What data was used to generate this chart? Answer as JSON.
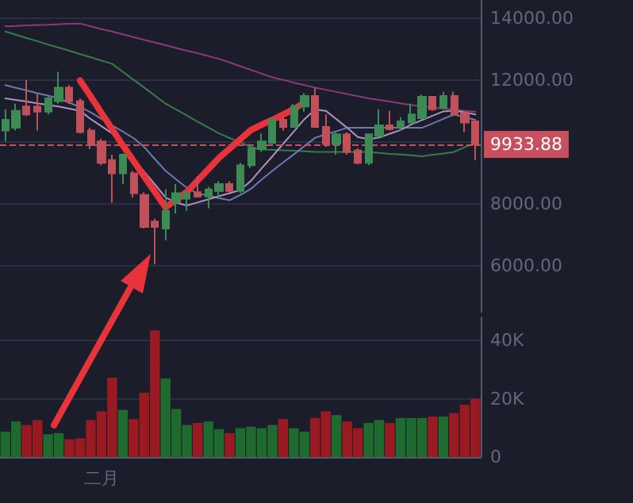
{
  "chart_data": [
    {
      "type": "candlestick",
      "categories": [
        null,
        null,
        null,
        null,
        null,
        null,
        null,
        null,
        null,
        null,
        null,
        null,
        null,
        null,
        null,
        null,
        null,
        null,
        null,
        null,
        null,
        null,
        null,
        null,
        null,
        null,
        null,
        null,
        null,
        null,
        null,
        null,
        null,
        null,
        null,
        null,
        null,
        null,
        null,
        null,
        null,
        null,
        null,
        null,
        null
      ],
      "ohlc": [
        [
          10380,
          11070,
          10030,
          10730
        ],
        [
          10470,
          11250,
          10380,
          11020
        ],
        [
          11160,
          12020,
          10850,
          10900
        ],
        [
          11160,
          11590,
          10380,
          10990
        ],
        [
          10990,
          11500,
          10900,
          11420
        ],
        [
          11330,
          12280,
          11250,
          11770
        ],
        [
          11770,
          11850,
          11250,
          11330
        ],
        [
          11330,
          11420,
          10290,
          10330
        ],
        [
          10380,
          10470,
          9780,
          9910
        ],
        [
          10030,
          10120,
          9260,
          9340
        ],
        [
          9430,
          9600,
          8050,
          9000
        ],
        [
          9000,
          9640,
          8650,
          9600
        ],
        [
          9000,
          9080,
          8220,
          8360
        ],
        [
          8300,
          8390,
          7220,
          7270
        ],
        [
          7440,
          7530,
          6060,
          7270
        ],
        [
          7220,
          8480,
          6830,
          7790
        ],
        [
          8050,
          8650,
          7700,
          8360
        ],
        [
          8180,
          8480,
          7790,
          8360
        ],
        [
          8390,
          8910,
          8220,
          8250
        ],
        [
          8250,
          8560,
          7870,
          8480
        ],
        [
          8430,
          8740,
          8220,
          8650
        ],
        [
          8650,
          8740,
          8390,
          8430
        ],
        [
          8430,
          9340,
          8360,
          9260
        ],
        [
          9260,
          9950,
          9170,
          9810
        ],
        [
          9780,
          10290,
          9690,
          10030
        ],
        [
          9980,
          10810,
          9910,
          10730
        ],
        [
          10730,
          10810,
          10380,
          10500
        ],
        [
          10500,
          11250,
          10470,
          11160
        ],
        [
          11160,
          11590,
          10990,
          11500
        ],
        [
          11500,
          11770,
          10470,
          10500
        ],
        [
          10500,
          10900,
          9860,
          9950
        ],
        [
          9950,
          10330,
          9600,
          10260
        ],
        [
          10260,
          10330,
          9600,
          9690
        ],
        [
          9740,
          9810,
          9290,
          9340
        ],
        [
          9340,
          10290,
          9260,
          10260
        ],
        [
          10210,
          11070,
          10160,
          10550
        ],
        [
          10550,
          11020,
          10380,
          10430
        ],
        [
          10500,
          10810,
          10380,
          10680
        ],
        [
          10640,
          11250,
          10610,
          10900
        ],
        [
          10780,
          11540,
          10740,
          11470
        ],
        [
          11470,
          11500,
          11020,
          11070
        ],
        [
          11120,
          11640,
          11070,
          11500
        ],
        [
          11500,
          11640,
          10850,
          10900
        ],
        [
          10950,
          10990,
          10330,
          10640
        ],
        [
          10680,
          10730,
          9430,
          9934
        ]
      ],
      "colors": [
        "#3d8a55",
        "#3d8a55",
        "#c0505a",
        "#c0505a",
        "#3d8a55",
        "#3d8a55",
        "#c0505a",
        "#c0505a",
        "#c0505a",
        "#c0505a",
        "#c0505a",
        "#3d8a55",
        "#c0505a",
        "#c0505a",
        "#c0505a",
        "#3d8a55",
        "#3d8a55",
        "#3d8a55",
        "#c0505a",
        "#3d8a55",
        "#3d8a55",
        "#c0505a",
        "#3d8a55",
        "#3d8a55",
        "#3d8a55",
        "#3d8a55",
        "#c0505a",
        "#3d8a55",
        "#3d8a55",
        "#c0505a",
        "#c0505a",
        "#3d8a55",
        "#c0505a",
        "#c0505a",
        "#3d8a55",
        "#3d8a55",
        "#c0505a",
        "#3d8a55",
        "#3d8a55",
        "#3d8a55",
        "#c0505a",
        "#3d8a55",
        "#c0505a",
        "#c0505a",
        "#c0505a"
      ],
      "series": [
        {
          "type": "line",
          "color": "#8a3a7a",
          "values": [
            13750,
            13760,
            13780,
            13790,
            13800,
            13820,
            13830,
            13840,
            13750,
            13660,
            13580,
            13490,
            13400,
            13310,
            13230,
            13140,
            13050,
            12960,
            12880,
            12790,
            12700,
            12580,
            12460,
            12340,
            12220,
            12100,
            12020,
            11930,
            11850,
            11770,
            11700,
            11630,
            11560,
            11490,
            11420,
            11370,
            11320,
            11260,
            11210,
            11160,
            11130,
            11090,
            11060,
            11020,
            10990
          ]
        },
        {
          "type": "line",
          "color": "#3a7a4a",
          "values": [
            13580,
            13480,
            13370,
            13270,
            13160,
            13060,
            12960,
            12850,
            12750,
            12640,
            12540,
            12280,
            12020,
            11770,
            11510,
            11250,
            11060,
            10870,
            10670,
            10480,
            10290,
            10140,
            10000,
            9850,
            9770,
            9760,
            9740,
            9730,
            9710,
            9690,
            9690,
            9690,
            9690,
            9690,
            9690,
            9660,
            9630,
            9610,
            9580,
            9550,
            9600,
            9640,
            9690,
            9840,
            9990
          ]
        },
        {
          "type": "line",
          "color": "#6a7ab0",
          "values": [
            11850,
            11760,
            11680,
            11590,
            11510,
            11420,
            11280,
            11140,
            10970,
            10760,
            10550,
            10350,
            10140,
            9850,
            9460,
            9080,
            8800,
            8530,
            8350,
            8280,
            8200,
            8130,
            8300,
            8500,
            8800,
            9080,
            9350,
            9610,
            9880,
            10150,
            10260,
            10360,
            10470,
            10470,
            10470,
            10470,
            10470,
            10470,
            10470,
            10470,
            10610,
            10760,
            10900,
            10810,
            10730
          ]
        },
        {
          "type": "line",
          "color": "#e8333a",
          "line_style": "solid",
          "values": [
            null,
            null,
            null,
            null,
            null,
            null,
            null,
            12000,
            11480,
            10950,
            10430,
            9900,
            9400,
            8900,
            8400,
            7900,
            8150,
            8400,
            8770,
            9130,
            9500,
            9800,
            10100,
            10400,
            10570,
            10730,
            10900,
            11070,
            11300,
            null,
            null,
            null,
            null,
            null,
            null,
            null,
            null,
            null,
            null,
            null,
            null,
            null,
            null,
            null,
            null
          ]
        },
        {
          "type": "line",
          "color": "#b090c0",
          "values": [
            11420,
            11370,
            11320,
            11260,
            11210,
            11160,
            11090,
            11020,
            10750,
            10520,
            10290,
            9880,
            9470,
            9050,
            8640,
            8220,
            8050,
            7960,
            8060,
            8160,
            8260,
            8360,
            8460,
            8760,
            9160,
            9550,
            9950,
            10350,
            10750,
            11060,
            11020,
            10750,
            10470,
            10170,
            10100,
            10160,
            10280,
            10400,
            10580,
            10720,
            10860,
            11000,
            11030,
            10970,
            10900
          ]
        }
      ],
      "ylim": [
        4500,
        14600
      ],
      "yticks": [
        {
          "value": 6000,
          "label": "6000.00"
        },
        {
          "value": 8000,
          "label": "8000.00"
        },
        {
          "value": 10000,
          "label": null
        },
        {
          "value": 12000,
          "label": "12000.00"
        },
        {
          "value": 14000,
          "label": "14000.00"
        }
      ],
      "ref_lines": [
        {
          "axis": "y",
          "value": 9933.88,
          "label": "9933.88",
          "color": "#c8505e",
          "line_style": "dashed"
        }
      ],
      "grid": "y",
      "tick_labels": "y"
    },
    {
      "type": "bar",
      "categories": [
        null,
        null,
        null,
        null,
        null,
        null,
        null,
        null,
        null,
        "二月",
        null,
        null,
        null,
        null,
        null,
        null,
        null,
        null,
        null,
        null,
        null,
        null,
        null,
        null,
        null,
        null,
        null,
        null,
        null,
        null,
        null,
        null,
        null,
        null,
        null,
        null,
        null,
        null,
        null,
        null,
        null,
        null,
        null,
        null,
        null
      ],
      "values": [
        8700,
        12200,
        11000,
        12700,
        7800,
        8200,
        6100,
        6400,
        12700,
        15700,
        27300,
        16200,
        13000,
        22100,
        43500,
        27000,
        16500,
        11000,
        11700,
        12200,
        9600,
        8200,
        9900,
        10400,
        9900,
        11000,
        13000,
        9900,
        8700,
        13400,
        15700,
        14400,
        12200,
        9900,
        11700,
        12700,
        11700,
        13400,
        13400,
        13400,
        13900,
        13900,
        15100,
        17900,
        20000
      ],
      "colors": [
        "#1f6a2e",
        "#1f6a2e",
        "#9a1a22",
        "#9a1a22",
        "#1f6a2e",
        "#1f6a2e",
        "#9a1a22",
        "#9a1a22",
        "#9a1a22",
        "#9a1a22",
        "#9a1a22",
        "#1f6a2e",
        "#9a1a22",
        "#9a1a22",
        "#9a1a22",
        "#1f6a2e",
        "#1f6a2e",
        "#1f6a2e",
        "#9a1a22",
        "#1f6a2e",
        "#1f6a2e",
        "#9a1a22",
        "#1f6a2e",
        "#1f6a2e",
        "#1f6a2e",
        "#1f6a2e",
        "#9a1a22",
        "#1f6a2e",
        "#1f6a2e",
        "#9a1a22",
        "#9a1a22",
        "#1f6a2e",
        "#9a1a22",
        "#9a1a22",
        "#1f6a2e",
        "#1f6a2e",
        "#9a1a22",
        "#1f6a2e",
        "#1f6a2e",
        "#1f6a2e",
        "#9a1a22",
        "#1f6a2e",
        "#9a1a22",
        "#9a1a22",
        "#9a1a22"
      ],
      "ylim": [
        0,
        48000
      ],
      "yticks": [
        {
          "value": 0,
          "label": "0"
        },
        {
          "value": 20000,
          "label": "20K"
        },
        {
          "value": 40000,
          "label": "40K"
        }
      ],
      "grid": "y"
    }
  ]
}
